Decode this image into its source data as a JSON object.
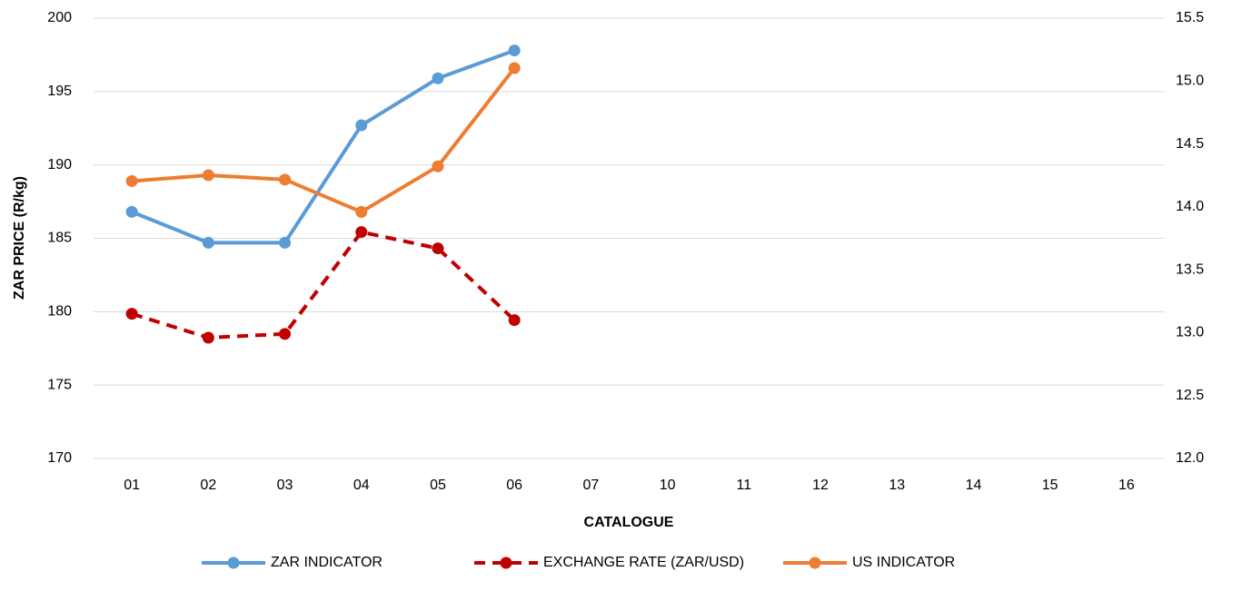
{
  "chart_data": {
    "type": "line",
    "x_label": "CATALOGUE",
    "y_label": "ZAR PRICE (R/kg)",
    "categories": [
      "01",
      "02",
      "03",
      "04",
      "05",
      "06",
      "07",
      "10",
      "11",
      "12",
      "13",
      "14",
      "15",
      "16"
    ],
    "series": [
      {
        "name": "ZAR INDICATOR",
        "color": "#5b9bd5",
        "values": [
          186.8,
          184.7,
          184.7,
          192.7,
          195.9,
          197.8,
          null,
          null,
          null,
          null,
          null,
          null,
          null,
          null
        ]
      },
      {
        "name": "EXCHANGE RATE (ZAR/USD)",
        "color": "#c00000",
        "dashed": true,
        "axis": "y2",
        "values": [
          13.15,
          12.96,
          12.99,
          13.8,
          13.67,
          13.1,
          null,
          null,
          null,
          null,
          null,
          null,
          null,
          null
        ]
      },
      {
        "name": "US INDICATOR",
        "color": "#ed7d31",
        "values": [
          188.9,
          189.3,
          189.0,
          186.8,
          189.9,
          196.6,
          null,
          null,
          null,
          null,
          null,
          null,
          null,
          null
        ]
      }
    ],
    "ylim": [
      170,
      200
    ],
    "yticks": [
      170,
      175,
      180,
      185,
      190,
      195,
      200
    ],
    "y2lim": [
      12.0,
      15.5
    ],
    "y2ticks": [
      {
        "value": 12.0,
        "label": "12.0"
      },
      12.5,
      {
        "value": 13.0,
        "label": "13.0"
      },
      13.5,
      {
        "value": 14.0,
        "label": "14.0"
      },
      14.5,
      {
        "value": 15.0,
        "label": "15.0"
      },
      15.5
    ],
    "grid": true,
    "legend": "bottom"
  }
}
